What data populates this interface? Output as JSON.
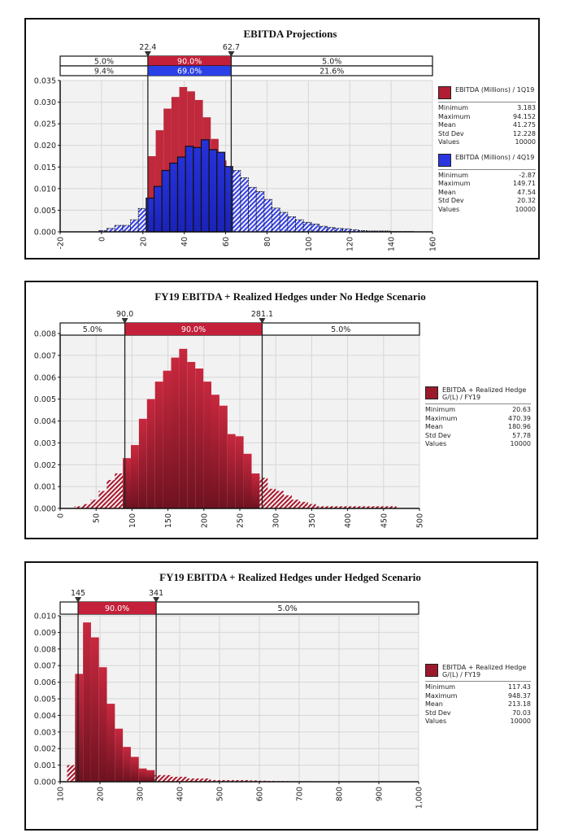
{
  "chart_data": [
    {
      "type": "bar",
      "title": "EBITDA Projections",
      "xlabel": "",
      "ylabel": "",
      "xlim": [
        -20,
        160
      ],
      "ylim": [
        0,
        0.035
      ],
      "x_ticks": [
        "-20",
        "0",
        "20",
        "40",
        "60",
        "80",
        "100",
        "120",
        "140",
        "160"
      ],
      "y_ticks": [
        "0.000",
        "0.005",
        "0.010",
        "0.015",
        "0.020",
        "0.025",
        "0.030",
        "0.035"
      ],
      "grid": true,
      "legend_position": "right",
      "markers": [
        {
          "label": "22.4",
          "value": 22.4
        },
        {
          "label": "62.7",
          "value": 62.7
        }
      ],
      "percent_bands": [
        {
          "series": "EBITDA (Millions) / 1Q19",
          "left": "5.0%",
          "middle": "90.0%",
          "right": "5.0%"
        },
        {
          "series": "EBITDA (Millions) / 4Q19",
          "left": "9.4%",
          "middle": "69.0%",
          "right": "21.6%"
        }
      ],
      "series": [
        {
          "name": "EBITDA (Millions) / 1Q19",
          "color": "#c0283c",
          "bin_start": 14.8,
          "bin_width": 3.8,
          "values": [
            0.004,
            0.0105,
            0.0175,
            0.0235,
            0.0285,
            0.0312,
            0.0335,
            0.0325,
            0.0305,
            0.0265,
            0.0215,
            0.0165,
            0.011,
            0.007,
            0.003
          ]
        },
        {
          "name": "EBITDA (Millions) / 4Q19",
          "color": "#2b35d6",
          "bin_start": -1.2,
          "bin_width": 3.8,
          "values": [
            0.0003,
            0.0008,
            0.0015,
            0.0015,
            0.0028,
            0.0054,
            0.0078,
            0.0105,
            0.0142,
            0.0159,
            0.0173,
            0.0198,
            0.0195,
            0.0213,
            0.019,
            0.0184,
            0.0151,
            0.0142,
            0.0125,
            0.0103,
            0.0093,
            0.0075,
            0.0055,
            0.0045,
            0.0035,
            0.0028,
            0.0022,
            0.0018,
            0.0013,
            0.001,
            0.0008,
            0.0007,
            0.0005,
            0.0003,
            0.0002,
            0.0002,
            0.0002,
            0.0001,
            0.0001,
            0.0001
          ]
        }
      ],
      "stats": [
        {
          "name": "EBITDA (Millions) / 1Q19",
          "Minimum": "3.183",
          "Maximum": "94.152",
          "Mean": "41.275",
          "Std Dev": "12.228",
          "Values": "10000"
        },
        {
          "name": "EBITDA (Millions) / 4Q19",
          "Minimum": "-2.87",
          "Maximum": "149.71",
          "Mean": "47.54",
          "Std Dev": "20.32",
          "Values": "10000"
        }
      ]
    },
    {
      "type": "bar",
      "title": "FY19 EBITDA + Realized Hedges under No Hedge Scenario",
      "xlabel": "",
      "ylabel": "",
      "xlim": [
        0,
        500
      ],
      "ylim": [
        0,
        0.008
      ],
      "x_ticks": [
        "0",
        "50",
        "100",
        "150",
        "200",
        "250",
        "300",
        "350",
        "400",
        "450",
        "500"
      ],
      "y_ticks": [
        "0.000",
        "0.001",
        "0.002",
        "0.003",
        "0.004",
        "0.005",
        "0.006",
        "0.007",
        "0.008"
      ],
      "grid": true,
      "legend_position": "right",
      "markers": [
        {
          "label": "90.0",
          "value": 90.0
        },
        {
          "label": "281.1",
          "value": 281.1
        }
      ],
      "percent_bands": [
        {
          "series": "EBITDA + Realized Hedge G/(L) / FY19",
          "left": "5.0%",
          "middle": "90.0%",
          "right": "5.0%"
        }
      ],
      "series": [
        {
          "name": "EBITDA + Realized Hedge G/(L) / FY19",
          "color": "#a81c30",
          "bin_start": 20,
          "bin_width": 11.2,
          "values": [
            0.0001,
            0.0002,
            0.0004,
            0.0008,
            0.0013,
            0.0016,
            0.0023,
            0.0029,
            0.0041,
            0.005,
            0.0058,
            0.0063,
            0.0069,
            0.0073,
            0.0067,
            0.0064,
            0.0058,
            0.0052,
            0.0047,
            0.0034,
            0.0033,
            0.0025,
            0.0016,
            0.0014,
            0.0009,
            0.0008,
            0.0006,
            0.0004,
            0.0003,
            0.0002,
            0.0001,
            0.0001,
            0.0001,
            0.0001,
            0.0001,
            0.0001,
            0.0001,
            0.0001,
            0.0001,
            0.0001
          ]
        }
      ],
      "stats": [
        {
          "name": "EBITDA + Realized Hedge G/(L) / FY19",
          "Minimum": "20.63",
          "Maximum": "470.39",
          "Mean": "180.96",
          "Std Dev": "57.78",
          "Values": "10000"
        }
      ]
    },
    {
      "type": "bar",
      "title": "FY19 EBITDA + Realized Hedges under Hedged Scenario",
      "xlabel": "",
      "ylabel": "",
      "xlim": [
        100,
        1000
      ],
      "ylim": [
        0,
        0.01
      ],
      "x_ticks": [
        "100",
        "200",
        "300",
        "400",
        "500",
        "600",
        "700",
        "800",
        "900",
        "1,000"
      ],
      "y_ticks": [
        "0.000",
        "0.001",
        "0.002",
        "0.003",
        "0.004",
        "0.005",
        "0.006",
        "0.007",
        "0.008",
        "0.009",
        "0.010"
      ],
      "grid": true,
      "legend_position": "right",
      "markers": [
        {
          "label": "145",
          "value": 145
        },
        {
          "label": "341",
          "value": 341
        }
      ],
      "percent_bands": [
        {
          "series": "EBITDA + Realized Hedge G/(L) / FY19",
          "left": "",
          "middle": "90.0%",
          "right": "5.0%"
        }
      ],
      "series": [
        {
          "name": "EBITDA + Realized Hedge G/(L) / FY19",
          "color": "#a81c30",
          "bin_start": 117.4,
          "bin_width": 20,
          "values": [
            0.001,
            0.0065,
            0.0096,
            0.0087,
            0.0069,
            0.0047,
            0.0032,
            0.0021,
            0.0015,
            0.0008,
            0.0007,
            0.0004,
            0.0004,
            0.0003,
            0.0003,
            0.0002,
            0.0002,
            0.0002,
            0.0001,
            0.0001,
            0.0001,
            0.0001,
            0.0001,
            8e-05,
            6e-05,
            5e-05,
            4e-05,
            4e-05,
            3e-05,
            3e-05,
            3e-05,
            2e-05,
            2e-05,
            2e-05,
            2e-05,
            2e-05,
            2e-05,
            2e-05,
            1e-05,
            1e-05,
            1e-05,
            1e-05
          ]
        }
      ],
      "stats": [
        {
          "name": "EBITDA + Realized Hedge G/(L) / FY19",
          "Minimum": "117.43",
          "Maximum": "948.37",
          "Mean": "213.18",
          "Std Dev": "70.03",
          "Values": "10000"
        }
      ]
    }
  ],
  "legend": {
    "stat_labels": [
      "Minimum",
      "Maximum",
      "Mean",
      "Std Dev",
      "Values"
    ],
    "chart1": [
      {
        "title": "EBITDA (Millions) / 1Q19",
        "color": "#b11d33",
        "values": [
          "3.183",
          "94.152",
          "41.275",
          "12.228",
          "10000"
        ]
      },
      {
        "title": "EBITDA (Millions) / 4Q19",
        "color": "#2b35e0",
        "values": [
          "-2.87",
          "149.71",
          "47.54",
          "20.32",
          "10000"
        ]
      }
    ],
    "chart2": [
      {
        "title": "EBITDA + Realized Hedge G/(L) / FY19",
        "color": "#9a1a2c",
        "values": [
          "20.63",
          "470.39",
          "180.96",
          "57.78",
          "10000"
        ]
      }
    ],
    "chart3": [
      {
        "title": "EBITDA + Realized Hedge G/(L) / FY19",
        "color": "#9a1a2c",
        "values": [
          "117.43",
          "948.37",
          "213.18",
          "70.03",
          "10000"
        ]
      }
    ]
  }
}
